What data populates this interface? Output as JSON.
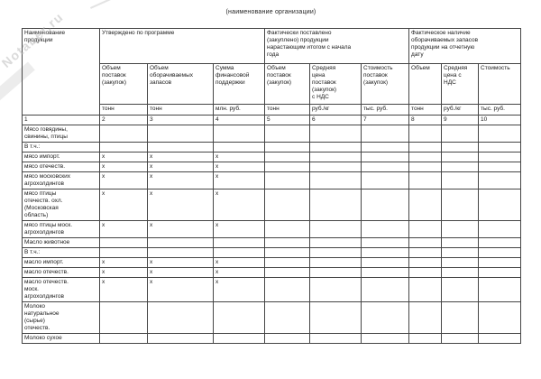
{
  "page": {
    "title": "(наименование организации)",
    "watermark": "Notaber.ru"
  },
  "table": {
    "col1_header": "Наименование\nпродукции",
    "groups": [
      "Утверждено по программе",
      "Фактически поставлено\n(закуплено) продукции\nнарастающим итогом с начала\nгода",
      "Фактическое наличие\nоборачиваемых запасов\nпродукции на отчетную\nдату"
    ],
    "subheaders": [
      "Объем\nпоставок\n(закупок)",
      "Объем\nоборачиваемых\nзапасов",
      "Сумма\nфинансовой\nподдержки",
      "Объем\nпоставок\n(закупок)",
      "Средняя\nцена\nпоставок\n(закупок)\nс НДС",
      "Стоимость\nпоставок\n(закупок)",
      "Объем",
      "Средняя\nцена с\nНДС",
      "Стоимость"
    ],
    "units": [
      "тонн",
      "тонн",
      "млн. руб.",
      "тонн",
      "руб./кг",
      "тыс. руб.",
      "тонн",
      "руб./кг",
      "тыс. руб."
    ],
    "column_numbers": [
      "1",
      "2",
      "3",
      "4",
      "5",
      "6",
      "7",
      "8",
      "9",
      "10"
    ],
    "rows": [
      {
        "name": "Мясо говядины,\nсвинины, птицы",
        "marks": [
          "",
          "",
          ""
        ]
      },
      {
        "name": "В т.ч.:",
        "marks": [
          "",
          "",
          ""
        ]
      },
      {
        "name": "мясо импорт.",
        "marks": [
          "x",
          "x",
          "x"
        ]
      },
      {
        "name": "мясо отечеств.",
        "marks": [
          "x",
          "x",
          "x"
        ]
      },
      {
        "name": "мясо московских\nагрохолдингов",
        "marks": [
          "x",
          "x",
          "x"
        ]
      },
      {
        "name": "мясо птицы\nотечеств. охл.\n(Московская\nобласть)",
        "marks": [
          "x",
          "x",
          "x"
        ]
      },
      {
        "name": "мясо птицы моск.\nагрохолдингов",
        "marks": [
          "x",
          "x",
          "x"
        ]
      },
      {
        "name": "Масло животное",
        "marks": [
          "",
          "",
          ""
        ]
      },
      {
        "name": "В т.ч.:",
        "marks": [
          "",
          "",
          ""
        ]
      },
      {
        "name": "масло импорт.",
        "marks": [
          "x",
          "x",
          "x"
        ]
      },
      {
        "name": "масло отечеств.",
        "marks": [
          "x",
          "x",
          "x"
        ]
      },
      {
        "name": "масло отечеств.\nмоск.\nагрохолдингов",
        "marks": [
          "x",
          "x",
          "x"
        ]
      },
      {
        "name": "Молоко\nнатуральное\n(сырье)\nотечеств.",
        "marks": [
          "",
          "",
          ""
        ]
      },
      {
        "name": "Молоко сухое",
        "marks": [
          "",
          "",
          ""
        ]
      }
    ]
  }
}
